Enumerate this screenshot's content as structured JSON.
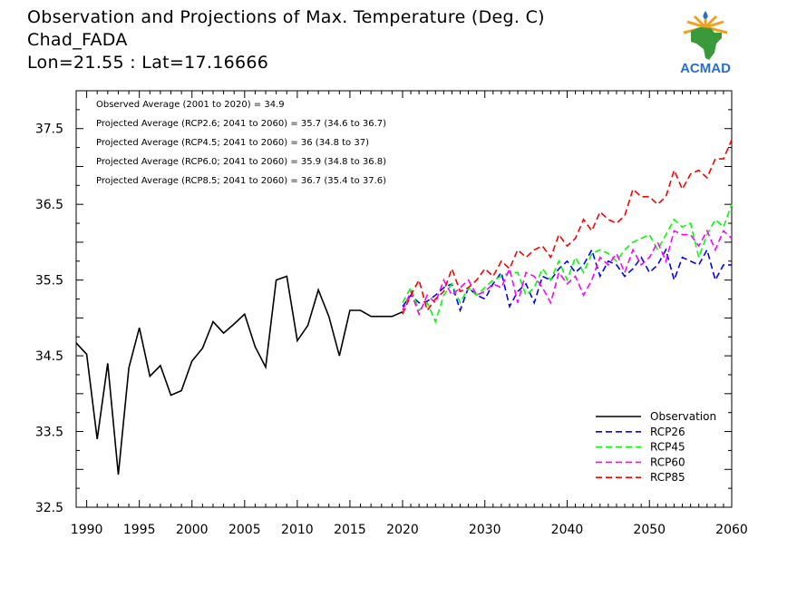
{
  "header": {
    "title": "Observation and Projections of Max. Temperature (Deg. C)",
    "location": "Chad_FADA",
    "coords": "Lon=21.55 : Lat=17.16666"
  },
  "logo": {
    "text": "ACMAD",
    "icon": "africa-logo-icon"
  },
  "annotations": [
    "Observed Average (2001 to 2020) = 34.9",
    "Projected Average (RCP2.6; 2041 to 2060) = 35.7 (34.6 to 36.7)",
    "Projected Average (RCP4.5; 2041 to 2060) = 36 (34.8 to 37)",
    "Projected Average (RCP6.0; 2041 to 2060) = 35.9 (34.8 to 36.8)",
    "Projected Average (RCP8.5; 2041 to 2060) = 36.7 (35.4 to 37.6)"
  ],
  "colors": {
    "Observation": "#000000",
    "RCP26": "#0000ff",
    "RCP45": "#00ff00",
    "RCP60": "#ff00ff",
    "RCP85": "#ff0000"
  },
  "chart_data": {
    "type": "line",
    "title": "Observation and Projections of Max. Temperature (Deg. C)",
    "xlim": [
      1989,
      2060
    ],
    "ylim": [
      32.5,
      38.0
    ],
    "xticks": [
      1990,
      1995,
      2000,
      2005,
      2010,
      2015,
      2020,
      2030,
      2040,
      2050,
      2060
    ],
    "yticks": [
      32.5,
      33.5,
      34.5,
      35.5,
      36.5,
      37.5
    ],
    "legend_position": "bottom-right",
    "series": [
      {
        "name": "Observation",
        "style": "solid",
        "x": [
          1989,
          1990,
          1991,
          1992,
          1993,
          1994,
          1995,
          1996,
          1997,
          1998,
          1999,
          2000,
          2001,
          2002,
          2003,
          2004,
          2005,
          2006,
          2007,
          2008,
          2009,
          2010,
          2011,
          2012,
          2013,
          2014,
          2015,
          2016,
          2017,
          2018,
          2019,
          2020
        ],
        "values": [
          34.67,
          34.52,
          33.4,
          34.4,
          32.93,
          34.34,
          34.87,
          34.23,
          34.37,
          33.98,
          34.04,
          34.43,
          34.6,
          34.95,
          34.8,
          34.92,
          35.05,
          34.62,
          34.35,
          35.5,
          35.55,
          34.7,
          34.9,
          35.37,
          35.02,
          34.5,
          35.1,
          35.1,
          35.02,
          35.02,
          35.02,
          35.08
        ]
      },
      {
        "name": "RCP26",
        "style": "dashed",
        "x": [
          2020,
          2021,
          2022,
          2023,
          2024,
          2025,
          2026,
          2027,
          2028,
          2029,
          2030,
          2031,
          2032,
          2033,
          2034,
          2035,
          2036,
          2037,
          2038,
          2039,
          2040,
          2041,
          2042,
          2043,
          2044,
          2045,
          2046,
          2047,
          2048,
          2049,
          2050,
          2051,
          2052,
          2053,
          2054,
          2055,
          2056,
          2057,
          2058,
          2059,
          2060
        ],
        "values": [
          35.15,
          35.3,
          35.2,
          35.22,
          35.3,
          35.4,
          35.45,
          35.1,
          35.4,
          35.3,
          35.25,
          35.45,
          35.6,
          35.15,
          35.35,
          35.45,
          35.2,
          35.55,
          35.5,
          35.65,
          35.75,
          35.6,
          35.7,
          35.9,
          35.55,
          35.75,
          35.7,
          35.55,
          35.65,
          35.8,
          35.6,
          35.7,
          35.9,
          35.5,
          35.8,
          35.75,
          35.7,
          35.9,
          35.5,
          35.7,
          35.7
        ]
      },
      {
        "name": "RCP45",
        "style": "dashed",
        "x": [
          2020,
          2021,
          2022,
          2023,
          2024,
          2025,
          2026,
          2027,
          2028,
          2029,
          2030,
          2031,
          2032,
          2033,
          2034,
          2035,
          2036,
          2037,
          2038,
          2039,
          2040,
          2041,
          2042,
          2043,
          2044,
          2045,
          2046,
          2047,
          2048,
          2049,
          2050,
          2051,
          2052,
          2053,
          2054,
          2055,
          2056,
          2057,
          2058,
          2059,
          2060
        ],
        "values": [
          35.2,
          35.4,
          35.1,
          35.2,
          34.95,
          35.3,
          35.45,
          35.2,
          35.4,
          35.3,
          35.4,
          35.5,
          35.55,
          35.6,
          35.6,
          35.3,
          35.4,
          35.65,
          35.5,
          35.75,
          35.5,
          35.8,
          35.6,
          35.85,
          35.9,
          35.85,
          35.75,
          35.9,
          36.0,
          36.05,
          36.1,
          35.9,
          36.1,
          36.3,
          36.2,
          36.25,
          35.8,
          36.1,
          36.3,
          36.2,
          36.5
        ]
      },
      {
        "name": "RCP60",
        "style": "dashed",
        "x": [
          2020,
          2021,
          2022,
          2023,
          2024,
          2025,
          2026,
          2027,
          2028,
          2029,
          2030,
          2031,
          2032,
          2033,
          2034,
          2035,
          2036,
          2037,
          2038,
          2039,
          2040,
          2041,
          2042,
          2043,
          2044,
          2045,
          2046,
          2047,
          2048,
          2049,
          2050,
          2051,
          2052,
          2053,
          2054,
          2055,
          2056,
          2057,
          2058,
          2059,
          2060
        ],
        "values": [
          35.1,
          35.35,
          35.05,
          35.3,
          35.2,
          35.5,
          35.3,
          35.4,
          35.5,
          35.3,
          35.35,
          35.45,
          35.4,
          35.65,
          35.2,
          35.6,
          35.55,
          35.4,
          35.2,
          35.6,
          35.45,
          35.55,
          35.3,
          35.5,
          35.8,
          35.7,
          35.85,
          35.6,
          35.9,
          35.7,
          35.8,
          36.0,
          35.75,
          36.15,
          36.1,
          36.1,
          35.95,
          36.15,
          35.9,
          36.15,
          36.05
        ]
      },
      {
        "name": "RCP85",
        "style": "dashed",
        "x": [
          2020,
          2021,
          2022,
          2023,
          2024,
          2025,
          2026,
          2027,
          2028,
          2029,
          2030,
          2031,
          2032,
          2033,
          2034,
          2035,
          2036,
          2037,
          2038,
          2039,
          2040,
          2041,
          2042,
          2043,
          2044,
          2045,
          2046,
          2047,
          2048,
          2049,
          2050,
          2051,
          2052,
          2053,
          2054,
          2055,
          2056,
          2057,
          2058,
          2059,
          2060
        ],
        "values": [
          35.05,
          35.3,
          35.5,
          35.1,
          35.25,
          35.35,
          35.65,
          35.35,
          35.4,
          35.5,
          35.65,
          35.55,
          35.75,
          35.65,
          35.9,
          35.8,
          35.9,
          35.95,
          35.8,
          36.1,
          35.95,
          36.05,
          36.3,
          36.15,
          36.4,
          36.3,
          36.25,
          36.35,
          36.7,
          36.6,
          36.6,
          36.5,
          36.6,
          36.95,
          36.7,
          36.9,
          36.95,
          36.85,
          37.1,
          37.1,
          37.35
        ]
      }
    ]
  }
}
